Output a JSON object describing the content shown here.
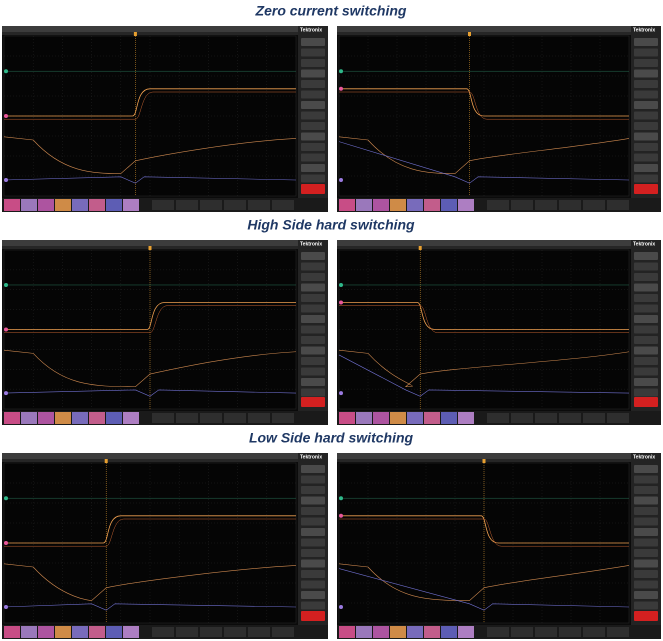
{
  "sections": [
    {
      "title": "Zero current switching"
    },
    {
      "title": "High Side hard switching"
    },
    {
      "title": "Low Side hard switching"
    }
  ],
  "scope": {
    "brand": "Tektronix"
  }
}
